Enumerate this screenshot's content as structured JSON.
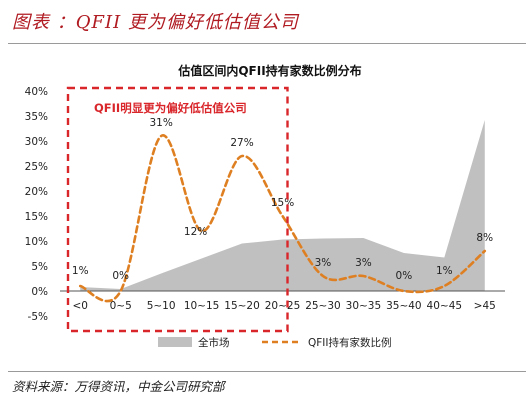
{
  "header": {
    "title": "图表 ：QFII 更为偏好低估值公司"
  },
  "footer": {
    "source": "资料来源：万得资讯，中金公司研究部"
  },
  "chart_data": {
    "type": "line",
    "title": "估值区间内QFII持有家数比例分布",
    "categories": [
      "<0",
      "0~5",
      "5~10",
      "10~15",
      "15~20",
      "20~25",
      "25~30",
      "30~35",
      "35~40",
      "40~45",
      ">45"
    ],
    "ylim": [
      -5,
      40
    ],
    "y_ticks": [
      "40%",
      "35%",
      "30%",
      "25%",
      "20%",
      "15%",
      "10%",
      "5%",
      "0%",
      "-5%"
    ],
    "series": [
      {
        "name": "全市场",
        "kind": "area",
        "color": "#c0c0c0",
        "values": [
          0.8,
          0.4,
          3.5,
          6.5,
          9.5,
          10.3,
          10.5,
          10.6,
          7.6,
          6.7,
          34.2
        ]
      },
      {
        "name": "QFII持有家数比例",
        "kind": "line",
        "style": "dashed",
        "color": "#de7f22",
        "values": [
          1,
          0,
          31,
          12,
          27,
          15,
          3,
          3,
          0,
          1,
          8
        ],
        "labels": [
          "1%",
          "0%",
          "31%",
          "12%",
          "27%",
          "15%",
          "3%",
          "3%",
          "0%",
          "1%",
          "8%"
        ]
      }
    ],
    "annotation": {
      "text": "QFII明显更为偏好低估值公司",
      "color": "#d9262b",
      "spans_categories": [
        "<0",
        "20~25"
      ]
    },
    "grid": false,
    "legend_position": "bottom"
  }
}
